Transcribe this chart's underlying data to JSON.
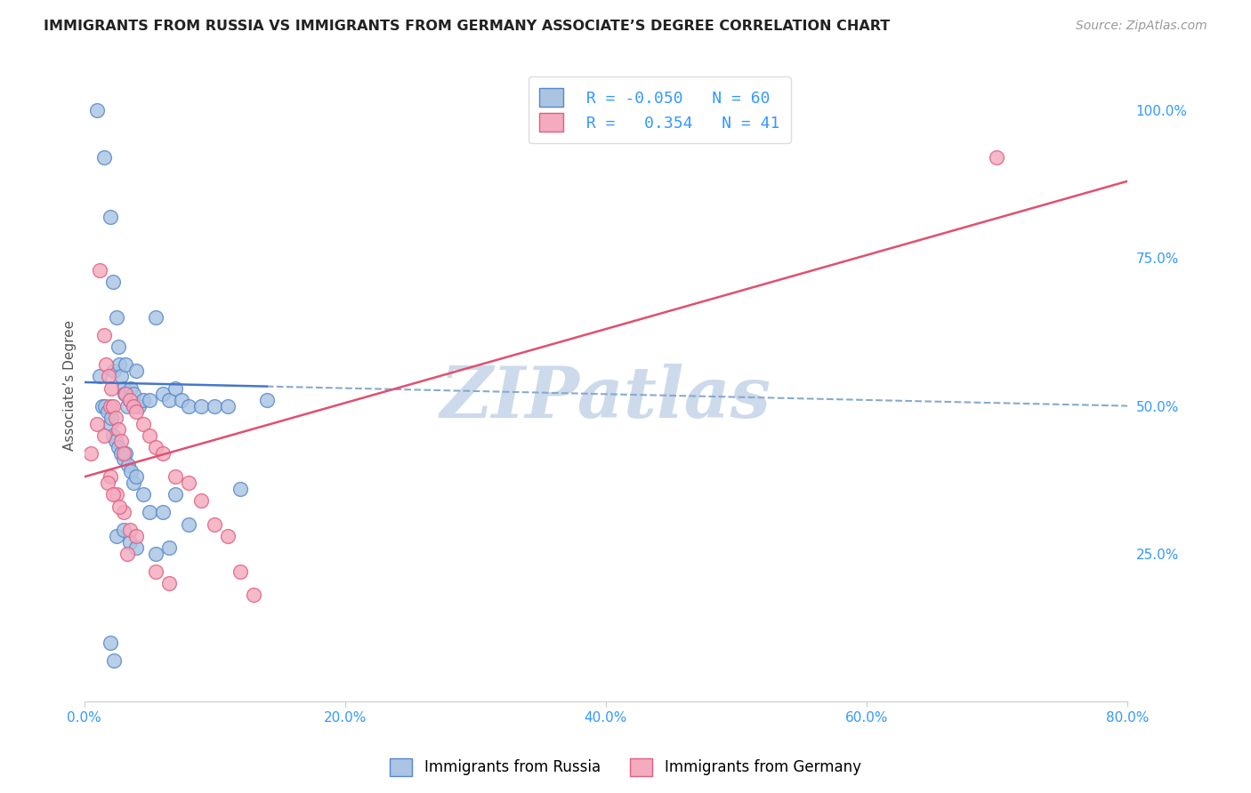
{
  "title": "IMMIGRANTS FROM RUSSIA VS IMMIGRANTS FROM GERMANY ASSOCIATE’S DEGREE CORRELATION CHART",
  "source": "Source: ZipAtlas.com",
  "ylabel": "Associate’s Degree",
  "x_tick_labels": [
    "0.0%",
    "20.0%",
    "40.0%",
    "60.0%",
    "80.0%"
  ],
  "x_tick_vals": [
    0.0,
    20.0,
    40.0,
    60.0,
    80.0
  ],
  "y_tick_labels": [
    "25.0%",
    "50.0%",
    "75.0%",
    "100.0%"
  ],
  "y_tick_vals": [
    25.0,
    50.0,
    75.0,
    100.0
  ],
  "xlim": [
    0.0,
    80.0
  ],
  "ylim": [
    0.0,
    107.0
  ],
  "legend_label_russia": "Immigrants from Russia",
  "legend_label_germany": "Immigrants from Germany",
  "russia_R": "-0.050",
  "russia_N": "60",
  "germany_R": "0.354",
  "germany_N": "41",
  "color_russia": "#aac4e2",
  "color_germany": "#f4aabf",
  "color_russia_edge": "#5588cc",
  "color_germany_edge": "#e06080",
  "color_russia_line": "#4477cc",
  "color_germany_line": "#e05070",
  "color_dashed": "#88aacc",
  "watermark_color": "#ccdaeb",
  "russia_x": [
    1.0,
    1.5,
    2.0,
    2.2,
    2.3,
    2.5,
    2.6,
    2.7,
    2.8,
    3.0,
    3.1,
    3.2,
    3.3,
    3.5,
    3.6,
    3.8,
    4.0,
    4.2,
    4.5,
    5.0,
    5.5,
    6.0,
    6.5,
    7.0,
    7.5,
    8.0,
    9.0,
    10.0,
    11.0,
    12.0,
    1.2,
    1.4,
    1.6,
    1.8,
    2.0,
    2.1,
    2.2,
    2.4,
    2.6,
    2.8,
    3.0,
    3.2,
    3.4,
    3.6,
    3.8,
    4.0,
    4.5,
    5.0,
    6.0,
    7.0,
    8.0,
    2.5,
    3.0,
    3.5,
    4.0,
    5.5,
    6.5,
    2.0,
    2.3,
    14.0
  ],
  "russia_y": [
    100.0,
    92.0,
    82.0,
    71.0,
    56.0,
    65.0,
    60.0,
    57.0,
    55.0,
    53.0,
    52.0,
    57.0,
    50.0,
    51.0,
    53.0,
    52.0,
    56.0,
    50.0,
    51.0,
    51.0,
    65.0,
    52.0,
    51.0,
    53.0,
    51.0,
    50.0,
    50.0,
    50.0,
    50.0,
    36.0,
    55.0,
    50.0,
    50.0,
    49.0,
    47.0,
    48.0,
    45.0,
    44.0,
    43.0,
    42.0,
    41.0,
    42.0,
    40.0,
    39.0,
    37.0,
    38.0,
    35.0,
    32.0,
    32.0,
    35.0,
    30.0,
    28.0,
    29.0,
    27.0,
    26.0,
    25.0,
    26.0,
    10.0,
    7.0,
    51.0
  ],
  "germany_x": [
    0.5,
    1.0,
    1.2,
    1.5,
    1.7,
    1.9,
    2.0,
    2.1,
    2.2,
    2.4,
    2.6,
    2.8,
    3.0,
    3.2,
    3.5,
    3.8,
    4.0,
    4.5,
    5.0,
    5.5,
    6.0,
    7.0,
    8.0,
    9.0,
    10.0,
    11.0,
    12.0,
    13.0,
    2.0,
    2.5,
    3.0,
    3.5,
    4.0,
    5.5,
    6.5,
    1.5,
    1.8,
    2.2,
    2.7,
    3.3,
    70.0
  ],
  "germany_y": [
    42.0,
    47.0,
    73.0,
    62.0,
    57.0,
    55.0,
    50.0,
    53.0,
    50.0,
    48.0,
    46.0,
    44.0,
    42.0,
    52.0,
    51.0,
    50.0,
    49.0,
    47.0,
    45.0,
    43.0,
    42.0,
    38.0,
    37.0,
    34.0,
    30.0,
    28.0,
    22.0,
    18.0,
    38.0,
    35.0,
    32.0,
    29.0,
    28.0,
    22.0,
    20.0,
    45.0,
    37.0,
    35.0,
    33.0,
    25.0,
    92.0
  ],
  "russia_line_x0": 0.0,
  "russia_line_y0": 54.0,
  "russia_line_x1": 80.0,
  "russia_line_y1": 50.0,
  "russia_solid_x1": 14.0,
  "germany_line_x0": 0.0,
  "germany_line_y0": 38.0,
  "germany_line_x1": 80.0,
  "germany_line_y1": 88.0
}
